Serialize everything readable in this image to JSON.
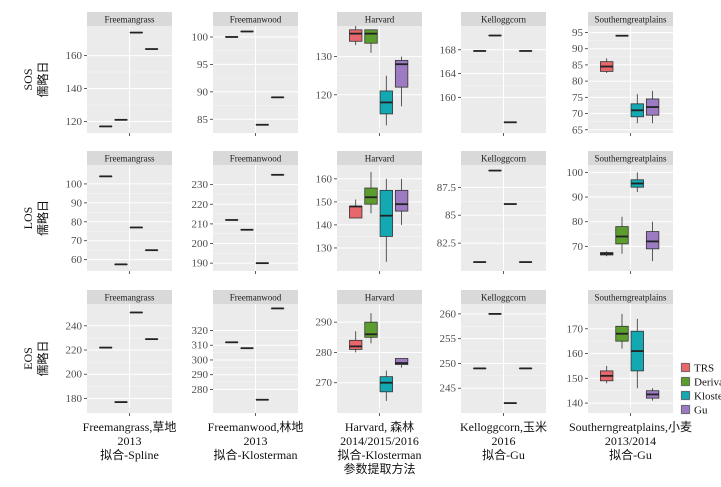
{
  "chart_data": {
    "type": "box",
    "legend": {
      "placement": "right",
      "entries": [
        {
          "name": "TRS",
          "color": "#E8676C"
        },
        {
          "name": "Derivatives",
          "color": "#5C9E2E"
        },
        {
          "name": "Klosterman",
          "color": "#13A8B2"
        },
        {
          "name": "Gu",
          "color": "#9C7BC2"
        }
      ]
    },
    "row_labels": [
      {
        "metric": "SOS",
        "unit": "儒略日"
      },
      {
        "metric": "LOS",
        "unit": "儒略日"
      },
      {
        "metric": "EOS",
        "unit": "儒略日"
      }
    ],
    "columns": [
      {
        "site": "Freemangrass",
        "caption": [
          "Freemangrass,草地",
          "2013",
          "拟合-Spline"
        ]
      },
      {
        "site": "Freemanwood",
        "caption": [
          "Freemanwood,林地",
          "2013",
          "拟合-Klosterman"
        ]
      },
      {
        "site": "Harvard",
        "caption": [
          "Harvard, 森林",
          "2014/2015/2016",
          "拟合-Klosterman",
          "参数提取方法"
        ]
      },
      {
        "site": "Kelloggcorn",
        "caption": [
          "Kelloggcorn,玉米",
          "2016",
          "拟合-Gu"
        ]
      },
      {
        "site": "Southerngreatplains",
        "caption": [
          "Southerngreatplains,小麦",
          "2013/2014",
          "拟合-Gu"
        ]
      }
    ],
    "panels": [
      {
        "row": 0,
        "col": 0,
        "ylim": [
          113,
          178
        ],
        "yticks": [
          120,
          140,
          160
        ],
        "boxes": [
          {
            "series": "TRS",
            "min": 117,
            "q1": 117,
            "median": 117,
            "q3": 117,
            "max": 117
          },
          {
            "series": "Derivatives",
            "min": 121,
            "q1": 121,
            "median": 121,
            "q3": 121,
            "max": 121
          },
          {
            "series": "Klosterman",
            "min": 174,
            "q1": 174,
            "median": 174,
            "q3": 174,
            "max": 174
          },
          {
            "series": "Gu",
            "min": 164,
            "q1": 164,
            "median": 164,
            "q3": 164,
            "max": 164
          }
        ]
      },
      {
        "row": 0,
        "col": 1,
        "ylim": [
          82.5,
          102
        ],
        "yticks": [
          85,
          90,
          95,
          100
        ],
        "boxes": [
          {
            "series": "TRS",
            "min": 100,
            "q1": 100,
            "median": 100,
            "q3": 100,
            "max": 100
          },
          {
            "series": "Derivatives",
            "min": 101,
            "q1": 101,
            "median": 101,
            "q3": 101,
            "max": 101
          },
          {
            "series": "Klosterman",
            "min": 84,
            "q1": 84,
            "median": 84,
            "q3": 84,
            "max": 84
          },
          {
            "series": "Gu",
            "min": 89,
            "q1": 89,
            "median": 89,
            "q3": 89,
            "max": 89
          }
        ]
      },
      {
        "row": 0,
        "col": 2,
        "ylim": [
          110,
          138
        ],
        "yticks": [
          120,
          130
        ],
        "boxes": [
          {
            "series": "TRS",
            "min": 133,
            "q1": 134,
            "median": 136,
            "q3": 137,
            "max": 138
          },
          {
            "series": "Derivatives",
            "min": 131,
            "q1": 133.5,
            "median": 136,
            "q3": 137,
            "max": 137
          },
          {
            "series": "Klosterman",
            "min": 112,
            "q1": 115,
            "median": 118,
            "q3": 121,
            "max": 125
          },
          {
            "series": "Gu",
            "min": 117,
            "q1": 122,
            "median": 128,
            "q3": 129,
            "max": 130
          }
        ]
      },
      {
        "row": 0,
        "col": 3,
        "ylim": [
          154,
          172
        ],
        "yticks": [
          160,
          164,
          168
        ],
        "boxes": [
          {
            "series": "TRS",
            "min": 167.8,
            "q1": 167.8,
            "median": 167.8,
            "q3": 167.8,
            "max": 167.8
          },
          {
            "series": "Derivatives",
            "min": 170.4,
            "q1": 170.4,
            "median": 170.4,
            "q3": 170.4,
            "max": 170.4
          },
          {
            "series": "Klosterman",
            "min": 155.8,
            "q1": 155.8,
            "median": 155.8,
            "q3": 155.8,
            "max": 155.8
          },
          {
            "series": "Gu",
            "min": 167.8,
            "q1": 167.8,
            "median": 167.8,
            "q3": 167.8,
            "max": 167.8
          }
        ]
      },
      {
        "row": 0,
        "col": 4,
        "ylim": [
          64,
          97
        ],
        "yticks": [
          65,
          70,
          75,
          80,
          85,
          90,
          95
        ],
        "boxes": [
          {
            "series": "TRS",
            "min": 82.5,
            "q1": 83,
            "median": 84.5,
            "q3": 86,
            "max": 87
          },
          {
            "series": "Derivatives",
            "min": 94,
            "q1": 94,
            "median": 94,
            "q3": 94,
            "max": 94
          },
          {
            "series": "Klosterman",
            "min": 67,
            "q1": 69,
            "median": 71,
            "q3": 73,
            "max": 76
          },
          {
            "series": "Gu",
            "min": 67,
            "q1": 69.5,
            "median": 72,
            "q3": 74.5,
            "max": 77
          }
        ]
      },
      {
        "row": 1,
        "col": 0,
        "ylim": [
          54,
          110
        ],
        "yticks": [
          60,
          70,
          80,
          90,
          100
        ],
        "boxes": [
          {
            "series": "TRS",
            "min": 104,
            "q1": 104,
            "median": 104,
            "q3": 104,
            "max": 104
          },
          {
            "series": "Derivatives",
            "min": 57.5,
            "q1": 57.5,
            "median": 57.5,
            "q3": 57.5,
            "max": 57.5
          },
          {
            "series": "Klosterman",
            "min": 77,
            "q1": 77,
            "median": 77,
            "q3": 77,
            "max": 77
          },
          {
            "series": "Gu",
            "min": 65,
            "q1": 65,
            "median": 65,
            "q3": 65,
            "max": 65
          }
        ]
      },
      {
        "row": 1,
        "col": 1,
        "ylim": [
          186,
          240
        ],
        "yticks": [
          190,
          200,
          210,
          220,
          230
        ],
        "boxes": [
          {
            "series": "TRS",
            "min": 212,
            "q1": 212,
            "median": 212,
            "q3": 212,
            "max": 212
          },
          {
            "series": "Derivatives",
            "min": 207,
            "q1": 207,
            "median": 207,
            "q3": 207,
            "max": 207
          },
          {
            "series": "Klosterman",
            "min": 190,
            "q1": 190,
            "median": 190,
            "q3": 190,
            "max": 190
          },
          {
            "series": "Gu",
            "min": 235,
            "q1": 235,
            "median": 235,
            "q3": 235,
            "max": 235
          }
        ]
      },
      {
        "row": 1,
        "col": 2,
        "ylim": [
          120,
          166
        ],
        "yticks": [
          130,
          140,
          150,
          160
        ],
        "boxes": [
          {
            "series": "TRS",
            "min": 143,
            "q1": 143,
            "median": 148,
            "q3": 148,
            "max": 151
          },
          {
            "series": "Derivatives",
            "min": 145,
            "q1": 149,
            "median": 152,
            "q3": 156,
            "max": 163
          },
          {
            "series": "Klosterman",
            "min": 124,
            "q1": 135,
            "median": 144,
            "q3": 155,
            "max": 160
          },
          {
            "series": "Gu",
            "min": 140,
            "q1": 146,
            "median": 149,
            "q3": 155,
            "max": 160
          }
        ]
      },
      {
        "row": 1,
        "col": 3,
        "ylim": [
          80,
          89.5
        ],
        "yticks": [
          82.5,
          85,
          87.5
        ],
        "boxes": [
          {
            "series": "TRS",
            "min": 80.8,
            "q1": 80.8,
            "median": 80.8,
            "q3": 80.8,
            "max": 80.8
          },
          {
            "series": "Derivatives",
            "min": 89,
            "q1": 89,
            "median": 89,
            "q3": 89,
            "max": 89
          },
          {
            "series": "Klosterman",
            "min": 86,
            "q1": 86,
            "median": 86,
            "q3": 86,
            "max": 86
          },
          {
            "series": "Gu",
            "min": 80.8,
            "q1": 80.8,
            "median": 80.8,
            "q3": 80.8,
            "max": 80.8
          }
        ]
      },
      {
        "row": 1,
        "col": 4,
        "ylim": [
          60,
          103
        ],
        "yticks": [
          70,
          80,
          90,
          100
        ],
        "boxes": [
          {
            "series": "TRS",
            "min": 66,
            "q1": 66.5,
            "median": 67,
            "q3": 67.5,
            "max": 68
          },
          {
            "series": "Derivatives",
            "min": 67,
            "q1": 71,
            "median": 74,
            "q3": 78,
            "max": 82
          },
          {
            "series": "Klosterman",
            "min": 92,
            "q1": 94,
            "median": 95.5,
            "q3": 97,
            "max": 100
          },
          {
            "series": "Gu",
            "min": 64,
            "q1": 69,
            "median": 72,
            "q3": 76,
            "max": 80
          }
        ]
      },
      {
        "row": 2,
        "col": 0,
        "ylim": [
          168,
          258
        ],
        "yticks": [
          180,
          200,
          220,
          240
        ],
        "boxes": [
          {
            "series": "TRS",
            "min": 222,
            "q1": 222,
            "median": 222,
            "q3": 222,
            "max": 222
          },
          {
            "series": "Derivatives",
            "min": 177,
            "q1": 177,
            "median": 177,
            "q3": 177,
            "max": 177
          },
          {
            "series": "Klosterman",
            "min": 251,
            "q1": 251,
            "median": 251,
            "q3": 251,
            "max": 251
          },
          {
            "series": "Gu",
            "min": 229,
            "q1": 229,
            "median": 229,
            "q3": 229,
            "max": 229
          }
        ]
      },
      {
        "row": 2,
        "col": 1,
        "ylim": [
          264,
          338
        ],
        "yticks": [
          280,
          290,
          300,
          310,
          320
        ],
        "boxes": [
          {
            "series": "TRS",
            "min": 312,
            "q1": 312,
            "median": 312,
            "q3": 312,
            "max": 312
          },
          {
            "series": "Derivatives",
            "min": 308,
            "q1": 308,
            "median": 308,
            "q3": 308,
            "max": 308
          },
          {
            "series": "Klosterman",
            "min": 273,
            "q1": 273,
            "median": 273,
            "q3": 273,
            "max": 273
          },
          {
            "series": "Gu",
            "min": 335,
            "q1": 335,
            "median": 335,
            "q3": 335,
            "max": 335
          }
        ]
      },
      {
        "row": 2,
        "col": 2,
        "ylim": [
          260,
          296
        ],
        "yticks": [
          270,
          280,
          290
        ],
        "boxes": [
          {
            "series": "TRS",
            "min": 280,
            "q1": 281,
            "median": 282,
            "q3": 284,
            "max": 287
          },
          {
            "series": "Derivatives",
            "min": 283,
            "q1": 285,
            "median": 286,
            "q3": 290,
            "max": 293
          },
          {
            "series": "Klosterman",
            "min": 264,
            "q1": 267,
            "median": 270,
            "q3": 272,
            "max": 274
          },
          {
            "series": "Gu",
            "min": 275,
            "q1": 276,
            "median": 276.5,
            "q3": 278,
            "max": 278
          }
        ]
      },
      {
        "row": 2,
        "col": 3,
        "ylim": [
          240,
          262
        ],
        "yticks": [
          245,
          250,
          255,
          260
        ],
        "boxes": [
          {
            "series": "TRS",
            "min": 249,
            "q1": 249,
            "median": 249,
            "q3": 249,
            "max": 249
          },
          {
            "series": "Derivatives",
            "min": 260,
            "q1": 260,
            "median": 260,
            "q3": 260,
            "max": 260
          },
          {
            "series": "Klosterman",
            "min": 242,
            "q1": 242,
            "median": 242,
            "q3": 242,
            "max": 242
          },
          {
            "series": "Gu",
            "min": 249,
            "q1": 249,
            "median": 249,
            "q3": 249,
            "max": 249
          }
        ]
      },
      {
        "row": 2,
        "col": 4,
        "ylim": [
          136,
          180
        ],
        "yticks": [
          140,
          150,
          160,
          170
        ],
        "boxes": [
          {
            "series": "TRS",
            "min": 148,
            "q1": 149,
            "median": 151,
            "q3": 153,
            "max": 155
          },
          {
            "series": "Derivatives",
            "min": 162,
            "q1": 165,
            "median": 168,
            "q3": 171,
            "max": 176
          },
          {
            "series": "Klosterman",
            "min": 146,
            "q1": 153,
            "median": 161,
            "q3": 169,
            "max": 174
          },
          {
            "series": "Gu",
            "min": 141,
            "q1": 142,
            "median": 143.5,
            "q3": 145,
            "max": 146
          }
        ]
      }
    ]
  }
}
